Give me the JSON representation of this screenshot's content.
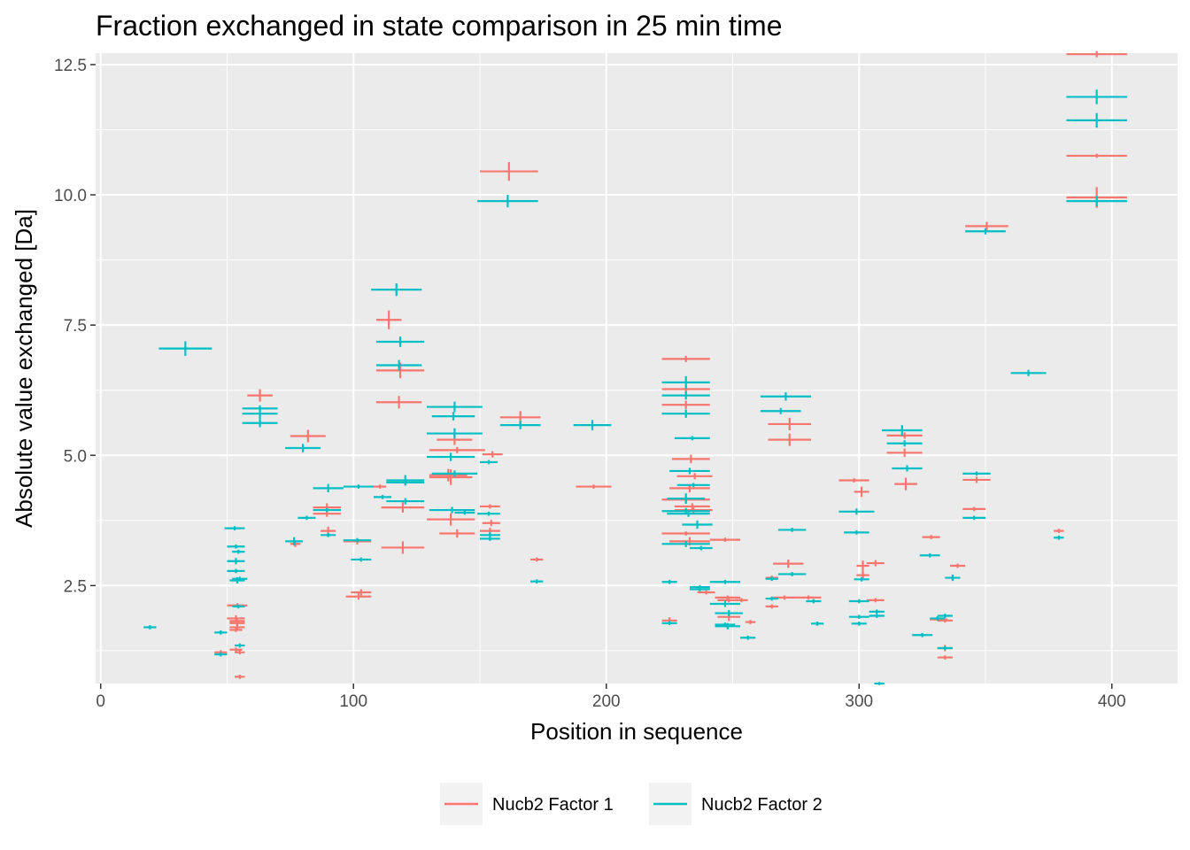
{
  "chart_data": {
    "type": "scatter",
    "title": "Fraction exchanged in state comparison in 25 min time",
    "xlabel": "Position in sequence",
    "ylabel": "Absolute value exchanged [Da]",
    "xlim": [
      -2,
      426
    ],
    "ylim": [
      0.62,
      12.72
    ],
    "x_ticks": [
      0,
      100,
      200,
      300,
      400
    ],
    "y_ticks": [
      2.5,
      5.0,
      7.5,
      10.0,
      12.5
    ],
    "y_tick_labels": [
      "2.5",
      "5.0",
      "7.5",
      "10.0",
      "12.5"
    ],
    "grid": true,
    "legend_position": "bottom",
    "series": [
      {
        "name": "Nucb2 Factor 1",
        "color": "#F8766D",
        "segments": [
          [
            58,
            68,
            6.15,
            0.12
          ],
          [
            75,
            89,
            5.37,
            0.12
          ],
          [
            75,
            79,
            3.3,
            0.06
          ],
          [
            84,
            95,
            4.0,
            0.08
          ],
          [
            84,
            95,
            3.88,
            0.06
          ],
          [
            87,
            93,
            3.55,
            0.08
          ],
          [
            96,
            107,
            3.35,
            0.06
          ],
          [
            97,
            107,
            2.29,
            0.06
          ],
          [
            99,
            107,
            2.37,
            0.06
          ],
          [
            108,
            113,
            4.4,
            0.04
          ],
          [
            109,
            119,
            7.6,
            0.18
          ],
          [
            109,
            128,
            6.63,
            0.15
          ],
          [
            109,
            127,
            6.02,
            0.12
          ],
          [
            111,
            128,
            4.0,
            0.1
          ],
          [
            111,
            128,
            3.23,
            0.12
          ],
          [
            130,
            152,
            5.1,
            0.06
          ],
          [
            130,
            147,
            4.58,
            0.15
          ],
          [
            130,
            145,
            4.62,
            0.12
          ],
          [
            129,
            148,
            3.77,
            0.12
          ],
          [
            134,
            148,
            3.5,
            0.08
          ],
          [
            133,
            147,
            5.3,
            0.1
          ],
          [
            151,
            159,
            5.02,
            0.06
          ],
          [
            150,
            158,
            4.02,
            0.04
          ],
          [
            151,
            158,
            3.7,
            0.06
          ],
          [
            150,
            158,
            3.55,
            0.06
          ],
          [
            158,
            174,
            5.73,
            0.12
          ],
          [
            150,
            173,
            10.45,
            0.18
          ],
          [
            170,
            175,
            3.0,
            0.04
          ],
          [
            188,
            202,
            4.4,
            0.04
          ],
          [
            222,
            241,
            6.85,
            0.06
          ],
          [
            222,
            241,
            6.27,
            0.08
          ],
          [
            222,
            241,
            5.97,
            0.08
          ],
          [
            226,
            241,
            4.93,
            0.08
          ],
          [
            228,
            242,
            4.6,
            0.06
          ],
          [
            225,
            241,
            4.37,
            0.08
          ],
          [
            222,
            241,
            4.15,
            0.06
          ],
          [
            227,
            241,
            4.02,
            0.06
          ],
          [
            227,
            242,
            3.95,
            0.06
          ],
          [
            222,
            241,
            3.5,
            0.04
          ],
          [
            225,
            241,
            3.35,
            0.08
          ],
          [
            222,
            228,
            1.83,
            0.06
          ],
          [
            236,
            243,
            2.37,
            0.04
          ],
          [
            241,
            253,
            3.38,
            0.04
          ],
          [
            243,
            253,
            2.27,
            0.04
          ],
          [
            244,
            253,
            2.22,
            0.04
          ],
          [
            244,
            253,
            1.9,
            0.08
          ],
          [
            251,
            256,
            2.22,
            0.04
          ],
          [
            255,
            259,
            1.8,
            0.04
          ],
          [
            263,
            268,
            2.65,
            0.04
          ],
          [
            263,
            268,
            2.1,
            0.04
          ],
          [
            264,
            281,
            5.6,
            0.12
          ],
          [
            264,
            281,
            5.3,
            0.12
          ],
          [
            266,
            278,
            2.92,
            0.08
          ],
          [
            266,
            275,
            2.27,
            0.04
          ],
          [
            275,
            285,
            2.27,
            0.04
          ],
          [
            292,
            304,
            4.52,
            0.04
          ],
          [
            298,
            304,
            4.3,
            0.1
          ],
          [
            299,
            304,
            2.88,
            0.1
          ],
          [
            299,
            304,
            2.7,
            0.08
          ],
          [
            303,
            310,
            2.93,
            0.06
          ],
          [
            303,
            310,
            2.22,
            0.04
          ],
          [
            311,
            325,
            5.38,
            0.06
          ],
          [
            311,
            325,
            5.05,
            0.08
          ],
          [
            314,
            323,
            4.45,
            0.12
          ],
          [
            325,
            332,
            3.43,
            0.04
          ],
          [
            328,
            335,
            1.85,
            0.04
          ],
          [
            331,
            337,
            1.3,
            0.06
          ],
          [
            331,
            337,
            1.83,
            0.04
          ],
          [
            331,
            337,
            1.12,
            0.04
          ],
          [
            336,
            342,
            2.88,
            0.04
          ],
          [
            341,
            352,
            4.53,
            0.06
          ],
          [
            341,
            350,
            3.97,
            0.04
          ],
          [
            342,
            359,
            9.4,
            0.08
          ],
          [
            377,
            381,
            3.55,
            0.04
          ],
          [
            382,
            406,
            12.7,
            0.06
          ],
          [
            382,
            406,
            10.75,
            0.04
          ],
          [
            382,
            406,
            9.95,
            0.2
          ],
          [
            45,
            50,
            1.22,
            0.04
          ],
          [
            50,
            58,
            2.12,
            0.04
          ],
          [
            50,
            57,
            1.87,
            0.06
          ],
          [
            51,
            57,
            1.82,
            0.06
          ],
          [
            51,
            57,
            1.78,
            0.06
          ],
          [
            51,
            57,
            1.7,
            0.04
          ],
          [
            51,
            56,
            1.65,
            0.04
          ],
          [
            51,
            56,
            1.27,
            0.04
          ],
          [
            53,
            57,
            1.22,
            0.04
          ],
          [
            53,
            57,
            0.75,
            0.04
          ]
        ]
      },
      {
        "name": "Nucb2 Factor 2",
        "color": "#00BFC4",
        "segments": [
          [
            17,
            22,
            1.7,
            0.04
          ],
          [
            23,
            44,
            7.05,
            0.14
          ],
          [
            45,
            50,
            1.6,
            0.04
          ],
          [
            45,
            50,
            1.18,
            0.04
          ],
          [
            49,
            57,
            3.6,
            0.04
          ],
          [
            50,
            57,
            3.25,
            0.04
          ],
          [
            50,
            57,
            2.97,
            0.06
          ],
          [
            50,
            57,
            2.78,
            0.04
          ],
          [
            51,
            57,
            2.6,
            0.06
          ],
          [
            52,
            57,
            2.1,
            0.04
          ],
          [
            53,
            57,
            1.35,
            0.04
          ],
          [
            52,
            58,
            2.63,
            0.04
          ],
          [
            52,
            57,
            3.15,
            0.04
          ],
          [
            56,
            70,
            5.9,
            0.06
          ],
          [
            56,
            70,
            5.8,
            0.1
          ],
          [
            56,
            70,
            5.62,
            0.08
          ],
          [
            73,
            80,
            3.35,
            0.08
          ],
          [
            73,
            87,
            5.14,
            0.08
          ],
          [
            78,
            85,
            3.8,
            0.04
          ],
          [
            84,
            95,
            3.95,
            0.04
          ],
          [
            84,
            96,
            4.37,
            0.08
          ],
          [
            87,
            93,
            3.47,
            0.04
          ],
          [
            96,
            108,
            4.4,
            0.04
          ],
          [
            96,
            107,
            3.37,
            0.04
          ],
          [
            99,
            107,
            3.0,
            0.04
          ],
          [
            108,
            115,
            4.2,
            0.04
          ],
          [
            107,
            127,
            8.18,
            0.12
          ],
          [
            109,
            128,
            7.18,
            0.1
          ],
          [
            109,
            127,
            6.73,
            0.1
          ],
          [
            113,
            128,
            4.52,
            0.1
          ],
          [
            113,
            128,
            4.48,
            0.06
          ],
          [
            113,
            128,
            4.12,
            0.06
          ],
          [
            129,
            151,
            5.93,
            0.1
          ],
          [
            129,
            151,
            5.42,
            0.1
          ],
          [
            131,
            148,
            5.75,
            0.08
          ],
          [
            129,
            148,
            4.97,
            0.08
          ],
          [
            131,
            149,
            4.65,
            0.06
          ],
          [
            130,
            148,
            3.95,
            0.06
          ],
          [
            140,
            148,
            3.9,
            0.04
          ],
          [
            150,
            157,
            4.87,
            0.04
          ],
          [
            149,
            158,
            3.88,
            0.04
          ],
          [
            150,
            158,
            3.47,
            0.06
          ],
          [
            150,
            158,
            3.4,
            0.04
          ],
          [
            149,
            173,
            9.88,
            0.12
          ],
          [
            158,
            174,
            5.58,
            0.08
          ],
          [
            170,
            175,
            2.58,
            0.04
          ],
          [
            187,
            202,
            5.58,
            0.1
          ],
          [
            222,
            241,
            6.4,
            0.12
          ],
          [
            222,
            241,
            6.15,
            0.08
          ],
          [
            222,
            241,
            5.8,
            0.08
          ],
          [
            227,
            241,
            5.33,
            0.04
          ],
          [
            225,
            241,
            4.7,
            0.06
          ],
          [
            228,
            241,
            4.43,
            0.04
          ],
          [
            222,
            241,
            3.93,
            0.06
          ],
          [
            224,
            241,
            3.88,
            0.06
          ],
          [
            222,
            228,
            1.78,
            0.04
          ],
          [
            222,
            228,
            2.57,
            0.04
          ],
          [
            222,
            241,
            3.3,
            0.06
          ],
          [
            224,
            239,
            4.17,
            0.1
          ],
          [
            230,
            242,
            3.67,
            0.08
          ],
          [
            233,
            242,
            3.22,
            0.04
          ],
          [
            233,
            241,
            2.43,
            0.04
          ],
          [
            233,
            241,
            2.47,
            0.04
          ],
          [
            241,
            253,
            2.57,
            0.04
          ],
          [
            241,
            253,
            2.15,
            0.06
          ],
          [
            243,
            254,
            1.97,
            0.06
          ],
          [
            243,
            251,
            1.75,
            0.04
          ],
          [
            243,
            253,
            1.72,
            0.06
          ],
          [
            253,
            259,
            1.5,
            0.04
          ],
          [
            263,
            268,
            2.25,
            0.04
          ],
          [
            263,
            268,
            2.63,
            0.04
          ],
          [
            261,
            281,
            6.13,
            0.08
          ],
          [
            261,
            277,
            5.85,
            0.06
          ],
          [
            268,
            279,
            3.57,
            0.04
          ],
          [
            268,
            279,
            2.72,
            0.04
          ],
          [
            279,
            285,
            2.2,
            0.04
          ],
          [
            281,
            286,
            1.77,
            0.04
          ],
          [
            292,
            306,
            3.92,
            0.06
          ],
          [
            294,
            304,
            3.52,
            0.04
          ],
          [
            296,
            304,
            2.2,
            0.04
          ],
          [
            296,
            304,
            1.9,
            0.04
          ],
          [
            297,
            303,
            1.77,
            0.04
          ],
          [
            298,
            304,
            2.62,
            0.04
          ],
          [
            304,
            310,
            2.0,
            0.04
          ],
          [
            304,
            310,
            1.92,
            0.04
          ],
          [
            306,
            310,
            0.62,
            0.02
          ],
          [
            309,
            325,
            5.48,
            0.1
          ],
          [
            311,
            325,
            5.23,
            0.06
          ],
          [
            313,
            325,
            4.75,
            0.06
          ],
          [
            321,
            329,
            1.55,
            0.04
          ],
          [
            324,
            332,
            3.08,
            0.04
          ],
          [
            328,
            334,
            1.87,
            0.04
          ],
          [
            331,
            337,
            1.92,
            0.04
          ],
          [
            331,
            337,
            1.3,
            0.04
          ],
          [
            334,
            340,
            2.65,
            0.06
          ],
          [
            341,
            352,
            4.65,
            0.04
          ],
          [
            341,
            350,
            3.8,
            0.04
          ],
          [
            342,
            358,
            9.3,
            0.06
          ],
          [
            360,
            374,
            6.58,
            0.06
          ],
          [
            377,
            381,
            3.42,
            0.04
          ],
          [
            382,
            406,
            11.88,
            0.14
          ],
          [
            382,
            406,
            11.43,
            0.14
          ],
          [
            382,
            406,
            9.88,
            0.1
          ]
        ]
      }
    ]
  }
}
